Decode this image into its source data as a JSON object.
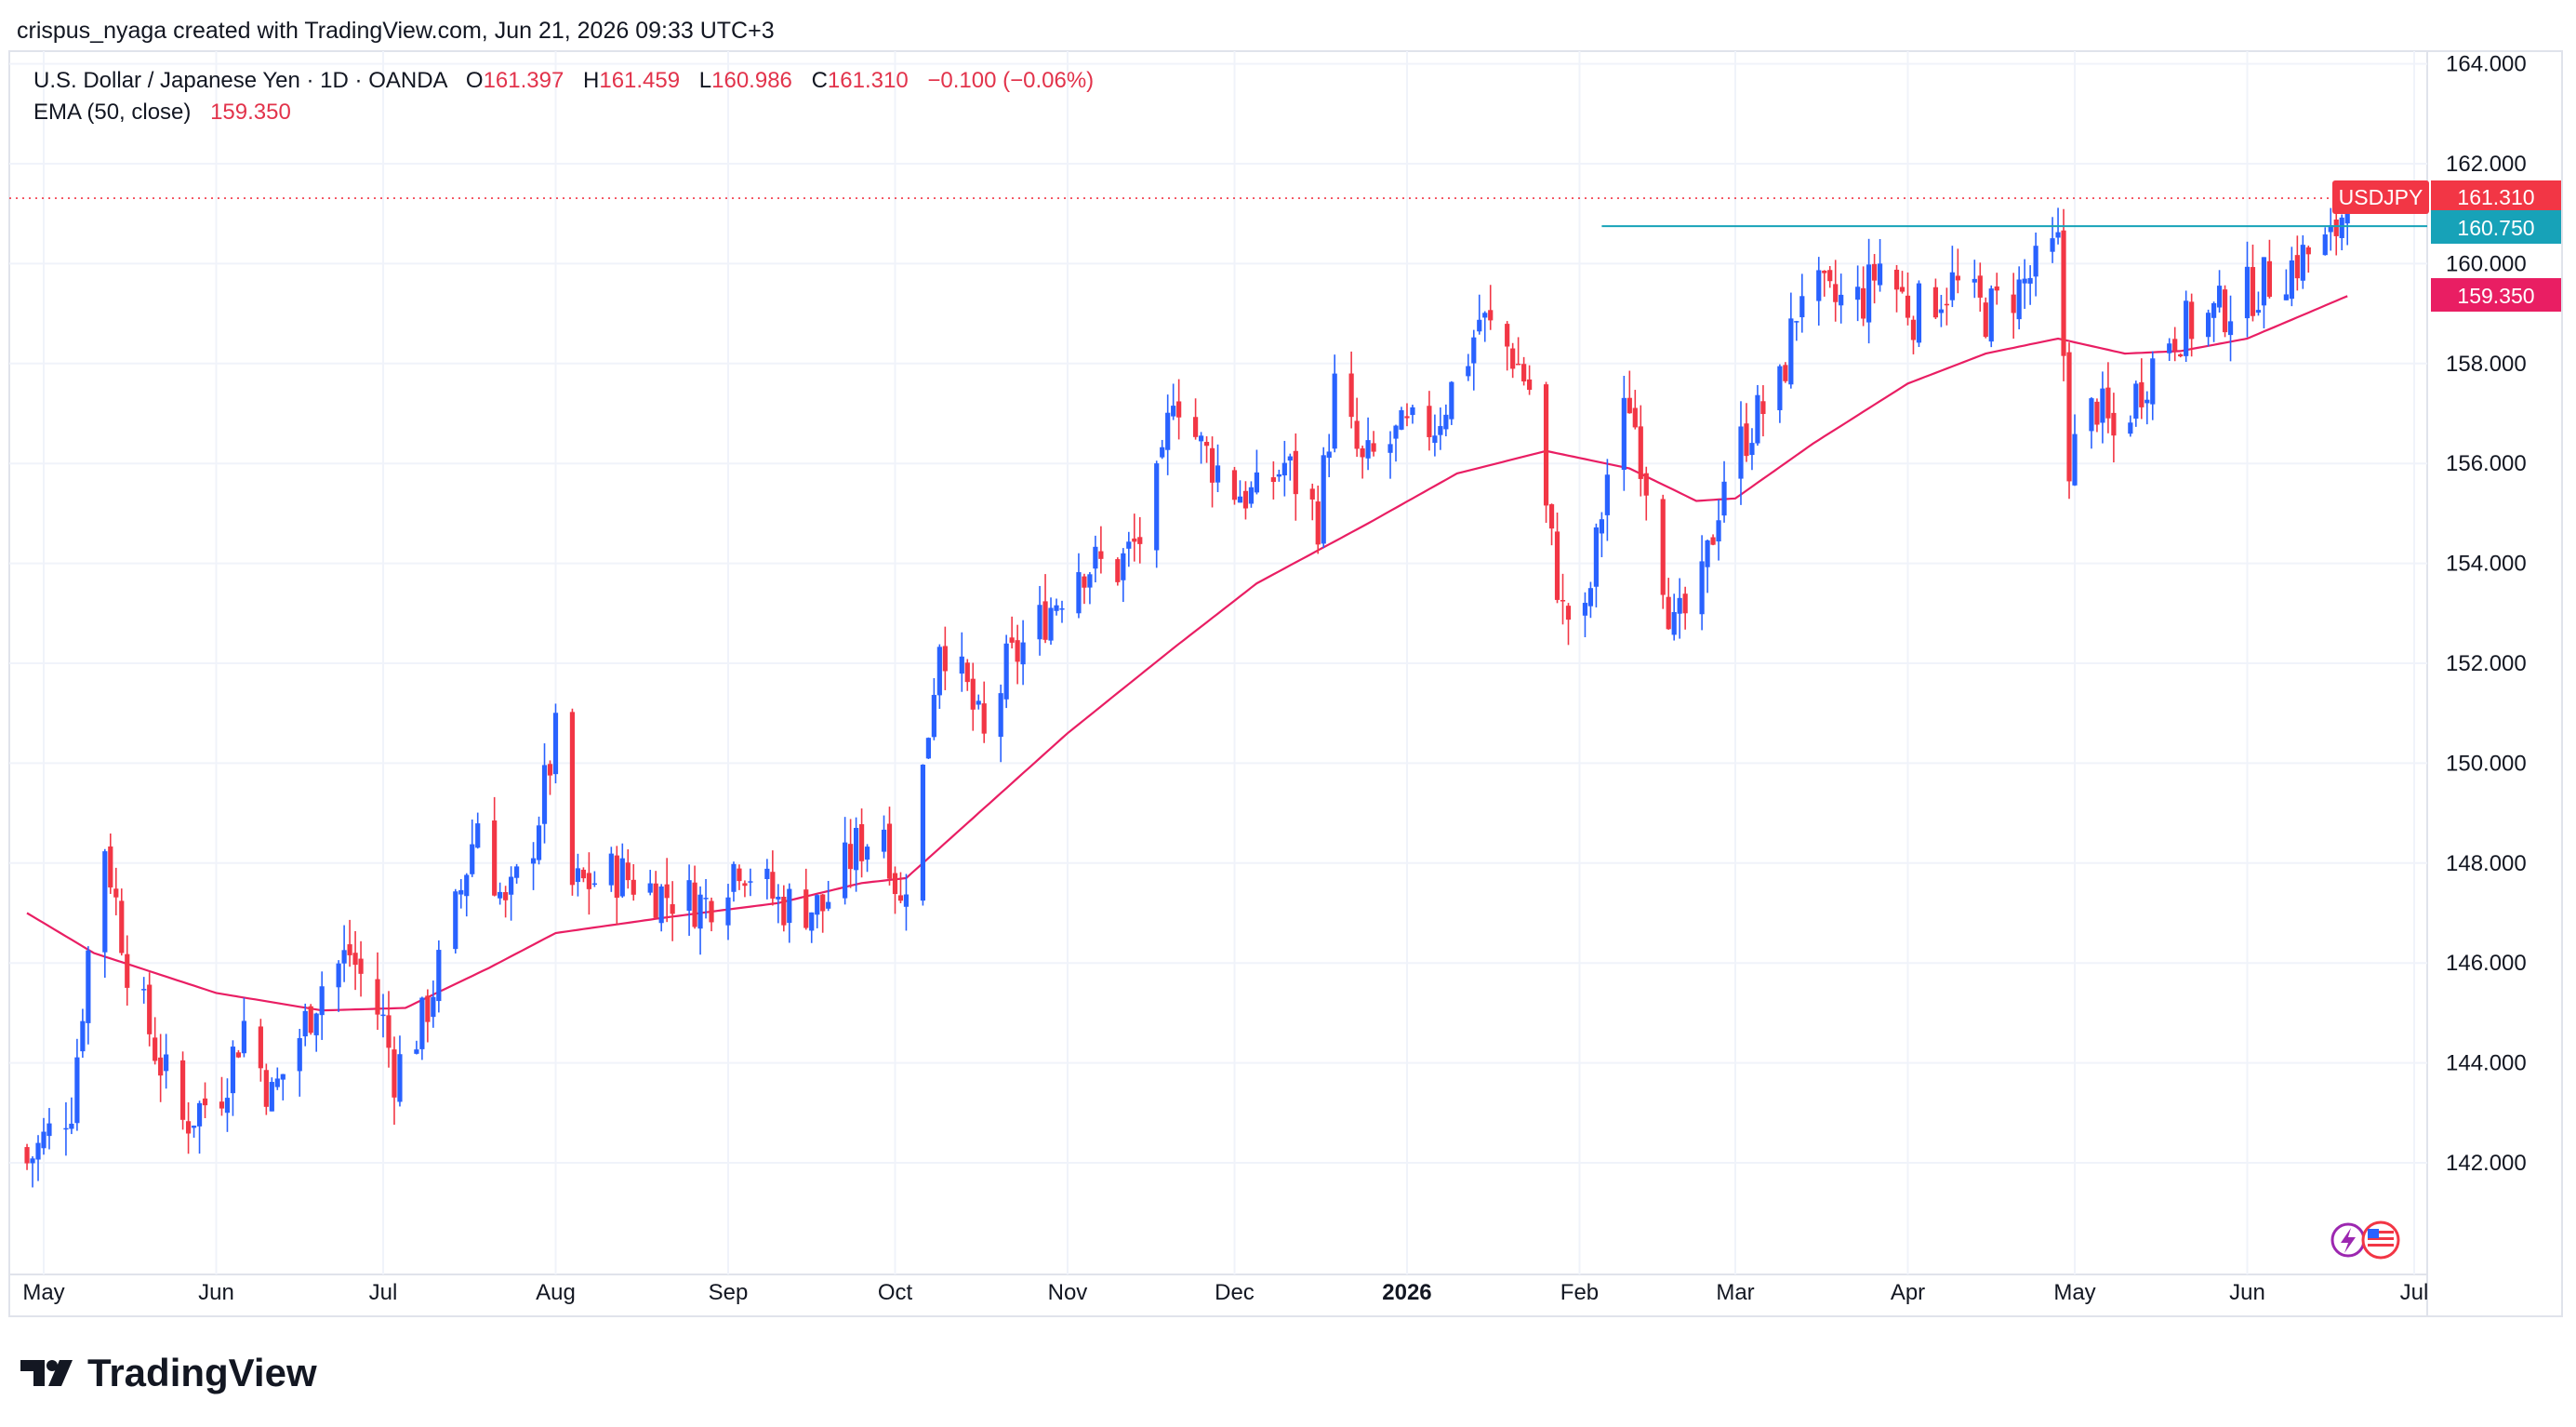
{
  "header": {
    "credit": "crispus_nyaga created with TradingView.com, Jun 21, 2026 09:33 UTC+3",
    "instrument": "U.S. Dollar / Japanese Yen · 1D · OANDA",
    "o_label": "O",
    "o_value": "161.397",
    "h_label": "H",
    "h_value": "161.459",
    "l_label": "L",
    "l_value": "160.986",
    "c_label": "C",
    "c_value": "161.310",
    "change": "−0.100 (−0.06%)",
    "ema_label": "EMA (50, close)",
    "ema_value": "159.350"
  },
  "tags": {
    "symbol": "USDJPY",
    "last_price": "161.310",
    "level": "160.750",
    "ema": "159.350"
  },
  "branding": {
    "name": "TradingView"
  },
  "colors": {
    "up": "#2962ff",
    "down": "#f23645",
    "ema": "#e91e63",
    "level_line": "#17a2b8",
    "grid": "#f0f3fa",
    "text": "#131722"
  },
  "chart_data": {
    "type": "candlestick",
    "symbol": "USDJPY",
    "timeframe": "1D",
    "ylim": [
      140.0,
      164.0
    ],
    "y_ticks": [
      "142.000",
      "144.000",
      "146.000",
      "148.000",
      "150.000",
      "152.000",
      "154.000",
      "156.000",
      "158.000",
      "160.000",
      "162.000",
      "164.000"
    ],
    "x_ticks": [
      {
        "label": "May",
        "date": "2025-05-01"
      },
      {
        "label": "Jun",
        "date": "2025-06-01"
      },
      {
        "label": "Jul",
        "date": "2025-07-01"
      },
      {
        "label": "Aug",
        "date": "2025-08-01"
      },
      {
        "label": "Sep",
        "date": "2025-09-01"
      },
      {
        "label": "Oct",
        "date": "2025-10-01"
      },
      {
        "label": "Nov",
        "date": "2025-11-01"
      },
      {
        "label": "Dec",
        "date": "2025-12-01"
      },
      {
        "label": "2026",
        "date": "2026-01-01",
        "bold": true
      },
      {
        "label": "Feb",
        "date": "2026-02-01"
      },
      {
        "label": "Mar",
        "date": "2026-03-01"
      },
      {
        "label": "Apr",
        "date": "2026-04-01"
      },
      {
        "label": "May",
        "date": "2026-05-01"
      },
      {
        "label": "Jun",
        "date": "2026-06-01"
      },
      {
        "label": "Jul",
        "date": "2026-07-01"
      }
    ],
    "close_path": [
      [
        "2025-04-28",
        142.0
      ],
      [
        "2025-05-06",
        143.2
      ],
      [
        "2025-05-09",
        146.2
      ],
      [
        "2025-05-12",
        148.4
      ],
      [
        "2025-05-16",
        146.0
      ],
      [
        "2025-05-21",
        144.3
      ],
      [
        "2025-05-26",
        142.8
      ],
      [
        "2025-06-02",
        143.5
      ],
      [
        "2025-06-06",
        144.8
      ],
      [
        "2025-06-11",
        143.3
      ],
      [
        "2025-06-17",
        144.8
      ],
      [
        "2025-06-20",
        145.6
      ],
      [
        "2025-06-25",
        146.2
      ],
      [
        "2025-07-01",
        144.8
      ],
      [
        "2025-07-03",
        143.8
      ],
      [
        "2025-07-08",
        144.8
      ],
      [
        "2025-07-14",
        147.0
      ],
      [
        "2025-07-18",
        148.9
      ],
      [
        "2025-07-23",
        147.0
      ],
      [
        "2025-07-28",
        148.5
      ],
      [
        "2025-08-01",
        150.5
      ],
      [
        "2025-08-04",
        147.5
      ],
      [
        "2025-08-12",
        147.8
      ],
      [
        "2025-08-20",
        147.4
      ],
      [
        "2025-08-28",
        147.2
      ],
      [
        "2025-09-03",
        148.1
      ],
      [
        "2025-09-10",
        147.2
      ],
      [
        "2025-09-18",
        147.1
      ],
      [
        "2025-09-24",
        148.3
      ],
      [
        "2025-09-29",
        148.8
      ],
      [
        "2025-10-02",
        147.1
      ],
      [
        "2025-10-06",
        149.8
      ],
      [
        "2025-10-09",
        152.6
      ],
      [
        "2025-10-14",
        151.4
      ],
      [
        "2025-10-17",
        150.4
      ],
      [
        "2025-10-21",
        151.9
      ],
      [
        "2025-10-27",
        152.8
      ],
      [
        "2025-11-03",
        154.0
      ],
      [
        "2025-11-10",
        153.9
      ],
      [
        "2025-11-14",
        154.5
      ],
      [
        "2025-11-18",
        155.8
      ],
      [
        "2025-11-20",
        157.6
      ],
      [
        "2025-11-25",
        156.3
      ],
      [
        "2025-12-01",
        155.5
      ],
      [
        "2025-12-05",
        155.3
      ],
      [
        "2025-12-10",
        156.0
      ],
      [
        "2025-12-16",
        154.9
      ],
      [
        "2025-12-19",
        157.5
      ],
      [
        "2025-12-24",
        155.9
      ],
      [
        "2025-12-30",
        156.5
      ],
      [
        "2026-01-06",
        156.8
      ],
      [
        "2026-01-12",
        158.2
      ],
      [
        "2026-01-14",
        158.9
      ],
      [
        "2026-01-20",
        158.2
      ],
      [
        "2026-01-23",
        157.5
      ],
      [
        "2026-01-26",
        155.0
      ],
      [
        "2026-01-29",
        153.0
      ],
      [
        "2026-02-02",
        152.8
      ],
      [
        "2026-02-06",
        155.8
      ],
      [
        "2026-02-10",
        157.3
      ],
      [
        "2026-02-13",
        155.7
      ],
      [
        "2026-02-18",
        152.6
      ],
      [
        "2026-02-23",
        153.5
      ],
      [
        "2026-02-27",
        155.8
      ],
      [
        "2026-03-04",
        156.8
      ],
      [
        "2026-03-09",
        157.5
      ],
      [
        "2026-03-13",
        159.6
      ],
      [
        "2026-03-18",
        159.2
      ],
      [
        "2026-03-24",
        159.3
      ],
      [
        "2026-03-27",
        160.0
      ],
      [
        "2026-04-02",
        159.0
      ],
      [
        "2026-04-09",
        159.6
      ],
      [
        "2026-04-15",
        159.0
      ],
      [
        "2026-04-21",
        159.5
      ],
      [
        "2026-04-28",
        160.3
      ],
      [
        "2026-04-30",
        156.1
      ],
      [
        "2026-05-05",
        157.2
      ],
      [
        "2026-05-08",
        156.5
      ],
      [
        "2026-05-13",
        157.6
      ],
      [
        "2026-05-18",
        158.6
      ],
      [
        "2026-05-25",
        158.9
      ],
      [
        "2026-06-01",
        159.4
      ],
      [
        "2026-06-08",
        159.9
      ],
      [
        "2026-06-12",
        160.2
      ],
      [
        "2026-06-16",
        160.4
      ],
      [
        "2026-06-19",
        161.31
      ]
    ],
    "ema_path": [
      [
        "2025-04-28",
        147.0
      ],
      [
        "2025-05-10",
        146.2
      ],
      [
        "2025-06-01",
        145.4
      ],
      [
        "2025-06-20",
        145.05
      ],
      [
        "2025-07-05",
        145.1
      ],
      [
        "2025-07-20",
        145.9
      ],
      [
        "2025-08-01",
        146.6
      ],
      [
        "2025-08-20",
        146.9
      ],
      [
        "2025-09-10",
        147.2
      ],
      [
        "2025-09-25",
        147.6
      ],
      [
        "2025-10-03",
        147.7
      ],
      [
        "2025-10-15",
        148.9
      ],
      [
        "2025-11-01",
        150.6
      ],
      [
        "2025-11-20",
        152.3
      ],
      [
        "2025-12-05",
        153.6
      ],
      [
        "2025-12-25",
        154.8
      ],
      [
        "2026-01-10",
        155.8
      ],
      [
        "2026-01-26",
        156.25
      ],
      [
        "2026-02-10",
        155.9
      ],
      [
        "2026-02-22",
        155.25
      ],
      [
        "2026-03-01",
        155.3
      ],
      [
        "2026-03-15",
        156.4
      ],
      [
        "2026-04-01",
        157.6
      ],
      [
        "2026-04-15",
        158.2
      ],
      [
        "2026-04-28",
        158.5
      ],
      [
        "2026-05-10",
        158.2
      ],
      [
        "2026-05-20",
        158.25
      ],
      [
        "2026-06-01",
        158.5
      ],
      [
        "2026-06-19",
        159.35
      ]
    ],
    "horizontal_level": {
      "price": 160.75,
      "from": "2026-02-05"
    },
    "last_price": 161.31,
    "ema_last": 159.35
  }
}
